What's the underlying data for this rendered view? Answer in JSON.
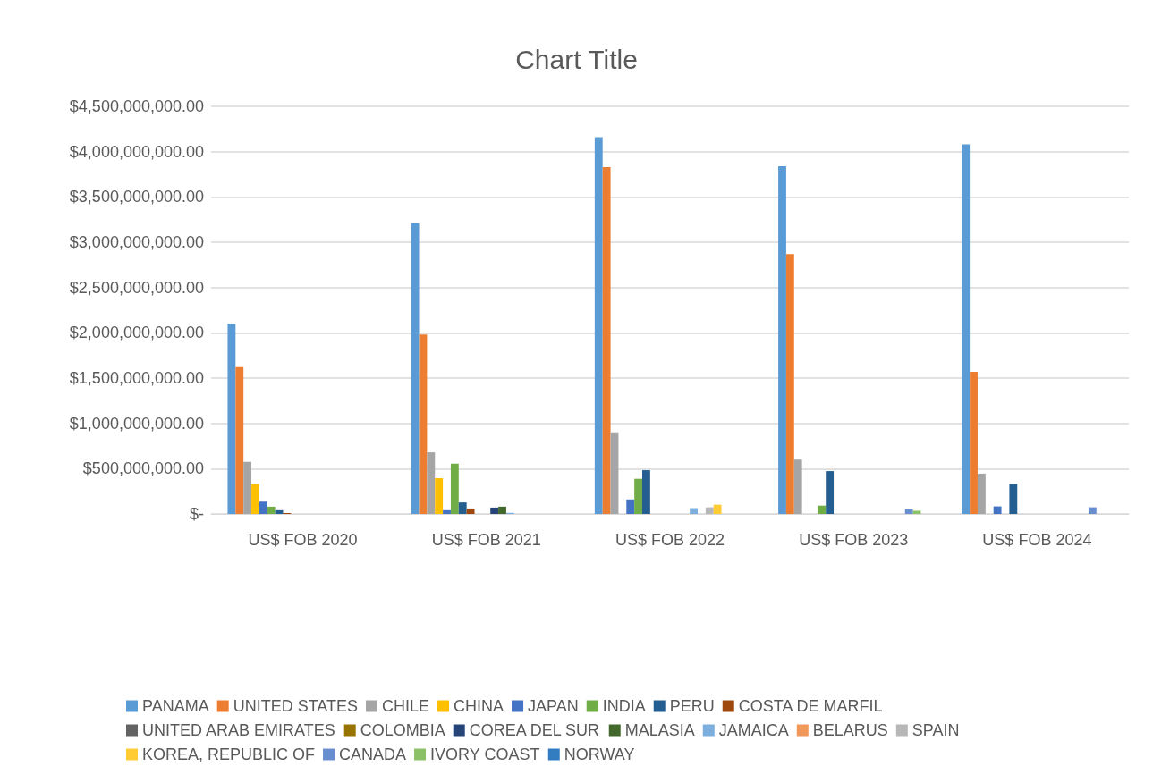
{
  "chart_data": {
    "type": "bar",
    "title": "Chart Title",
    "categories": [
      "US$ FOB 2020",
      "US$ FOB 2021",
      "US$ FOB 2022",
      "US$ FOB 2023",
      "US$ FOB 2024"
    ],
    "series": [
      {
        "name": "PANAMA",
        "color": "#5b9bd5",
        "values": [
          2100000000,
          3210000000,
          4160000000,
          3840000000,
          4080000000
        ]
      },
      {
        "name": "UNITED STATES",
        "color": "#ed7d31",
        "values": [
          1620000000,
          1980000000,
          3830000000,
          2870000000,
          1570000000
        ]
      },
      {
        "name": "CHILE",
        "color": "#a5a5a5",
        "values": [
          575000000,
          680000000,
          900000000,
          600000000,
          445000000
        ]
      },
      {
        "name": "CHINA",
        "color": "#ffc000",
        "values": [
          330000000,
          395000000,
          0,
          0,
          0
        ]
      },
      {
        "name": "JAPAN",
        "color": "#4472c4",
        "values": [
          136000000,
          41000000,
          160000000,
          0,
          83000000
        ]
      },
      {
        "name": "INDIA",
        "color": "#70ad47",
        "values": [
          80000000,
          555000000,
          388000000,
          92000000,
          0
        ]
      },
      {
        "name": "PERU",
        "color": "#255e91",
        "values": [
          41000000,
          127000000,
          483000000,
          473000000,
          331000000
        ]
      },
      {
        "name": "COSTA DE MARFIL",
        "color": "#9e480e",
        "values": [
          10000000,
          60000000,
          0,
          0,
          0
        ]
      },
      {
        "name": "UNITED ARAB EMIRATES",
        "color": "#636363",
        "values": [
          0,
          0,
          0,
          0,
          0
        ]
      },
      {
        "name": "COLOMBIA",
        "color": "#997300",
        "values": [
          0,
          0,
          0,
          0,
          0
        ]
      },
      {
        "name": "COREA DEL SUR",
        "color": "#264478",
        "values": [
          0,
          70000000,
          0,
          0,
          0
        ]
      },
      {
        "name": "MALASIA",
        "color": "#43682b",
        "values": [
          0,
          80000000,
          0,
          0,
          0
        ]
      },
      {
        "name": "JAMAICA",
        "color": "#7cafdd",
        "values": [
          0,
          12000000,
          64000000,
          0,
          0
        ]
      },
      {
        "name": "BELARUS",
        "color": "#f1975a",
        "values": [
          0,
          0,
          0,
          0,
          0
        ]
      },
      {
        "name": "SPAIN",
        "color": "#b7b7b7",
        "values": [
          0,
          0,
          73000000,
          0,
          0
        ]
      },
      {
        "name": "KOREA, REPUBLIC OF",
        "color": "#ffcd33",
        "values": [
          0,
          0,
          102000000,
          0,
          0
        ]
      },
      {
        "name": "CANADA",
        "color": "#698ed0",
        "values": [
          0,
          0,
          0,
          54000000,
          73000000
        ]
      },
      {
        "name": "IVORY COAST",
        "color": "#8cc168",
        "values": [
          0,
          0,
          0,
          35000000,
          0
        ]
      },
      {
        "name": "NORWAY",
        "color": "#327dc2",
        "values": [
          0,
          0,
          0,
          0,
          0
        ]
      }
    ],
    "ylim": [
      0,
      4500000000
    ],
    "yticks": [
      {
        "value": 0,
        "label": "$-"
      },
      {
        "value": 500000000,
        "label": "$500,000,000.00"
      },
      {
        "value": 1000000000,
        "label": "$1,000,000,000.00"
      },
      {
        "value": 1500000000,
        "label": "$1,500,000,000.00"
      },
      {
        "value": 2000000000,
        "label": "$2,000,000,000.00"
      },
      {
        "value": 2500000000,
        "label": "$2,500,000,000.00"
      },
      {
        "value": 3000000000,
        "label": "$3,000,000,000.00"
      },
      {
        "value": 3500000000,
        "label": "$3,500,000,000.00"
      },
      {
        "value": 4000000000,
        "label": "$4,000,000,000.00"
      },
      {
        "value": 4500000000,
        "label": "$4,500,000,000.00"
      }
    ],
    "grid": "y",
    "legend": "bottom"
  }
}
